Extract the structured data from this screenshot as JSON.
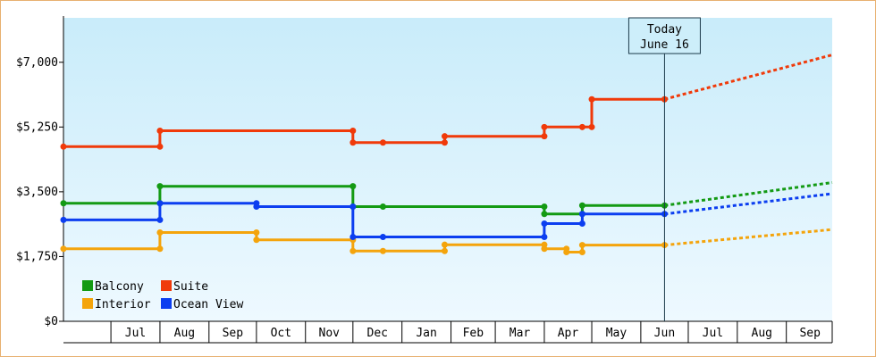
{
  "chart_data": {
    "type": "line",
    "line_style": "step",
    "yaxis": {
      "ticks": [
        "$0",
        "$1,750",
        "$3,500",
        "$5,250",
        "$7,000"
      ],
      "tick_values": [
        0,
        1750,
        3500,
        5250,
        7000
      ],
      "ylim": [
        0,
        8200
      ]
    },
    "xaxis": {
      "months": [
        "Jul",
        "Aug",
        "Sep",
        "Oct",
        "Nov",
        "Dec",
        "Jan",
        "Feb",
        "Mar",
        "Apr",
        "May",
        "Jun",
        "Jul",
        "Aug",
        "Sep"
      ],
      "range_start": "2024-06-01",
      "range_end": "2025-09-30"
    },
    "today": {
      "line1": "Today",
      "line2": "June 16",
      "date": "2025-06-16"
    },
    "legend": {
      "position": "bottom-left"
    },
    "series": [
      {
        "name": "Balcony",
        "color": "#139a13",
        "points": [
          [
            "2024-06-01",
            3190
          ],
          [
            "2024-08-01",
            3190
          ],
          [
            "2024-08-01",
            3650
          ],
          [
            "2024-12-01",
            3650
          ],
          [
            "2024-12-01",
            3100
          ],
          [
            "2024-12-20",
            3100
          ],
          [
            "2025-04-01",
            3100
          ],
          [
            "2025-04-01",
            2900
          ],
          [
            "2025-04-25",
            2900
          ],
          [
            "2025-04-25",
            3130
          ],
          [
            "2025-06-16",
            3130
          ]
        ],
        "forecast": [
          [
            "2025-06-16",
            3130
          ],
          [
            "2025-09-30",
            3750
          ]
        ]
      },
      {
        "name": "Suite",
        "color": "#f03a0a",
        "points": [
          [
            "2024-06-01",
            4720
          ],
          [
            "2024-08-01",
            4720
          ],
          [
            "2024-08-01",
            5150
          ],
          [
            "2024-12-01",
            5150
          ],
          [
            "2024-12-01",
            4830
          ],
          [
            "2024-12-20",
            4830
          ],
          [
            "2025-01-28",
            4830
          ],
          [
            "2025-01-28",
            5000
          ],
          [
            "2025-04-01",
            5000
          ],
          [
            "2025-04-01",
            5250
          ],
          [
            "2025-04-25",
            5250
          ],
          [
            "2025-05-01",
            5250
          ],
          [
            "2025-05-01",
            6000
          ],
          [
            "2025-06-16",
            6000
          ]
        ],
        "forecast": [
          [
            "2025-06-16",
            6000
          ],
          [
            "2025-09-30",
            7200
          ]
        ]
      },
      {
        "name": "Interior",
        "color": "#f4a40c",
        "points": [
          [
            "2024-06-01",
            1960
          ],
          [
            "2024-08-01",
            1960
          ],
          [
            "2024-08-01",
            2400
          ],
          [
            "2024-10-01",
            2400
          ],
          [
            "2024-10-01",
            2200
          ],
          [
            "2024-12-01",
            2200
          ],
          [
            "2024-12-01",
            1900
          ],
          [
            "2024-12-20",
            1900
          ],
          [
            "2025-01-28",
            1900
          ],
          [
            "2025-01-28",
            2070
          ],
          [
            "2025-04-01",
            2070
          ],
          [
            "2025-04-01",
            1960
          ],
          [
            "2025-04-15",
            1960
          ],
          [
            "2025-04-15",
            1870
          ],
          [
            "2025-04-25",
            1870
          ],
          [
            "2025-04-25",
            2060
          ],
          [
            "2025-06-16",
            2060
          ]
        ],
        "forecast": [
          [
            "2025-06-16",
            2060
          ],
          [
            "2025-09-30",
            2480
          ]
        ]
      },
      {
        "name": "Ocean View",
        "color": "#0c3ef0",
        "points": [
          [
            "2024-06-01",
            2740
          ],
          [
            "2024-08-01",
            2740
          ],
          [
            "2024-08-01",
            3190
          ],
          [
            "2024-10-01",
            3190
          ],
          [
            "2024-10-01",
            3100
          ],
          [
            "2024-12-01",
            3100
          ],
          [
            "2024-12-01",
            2280
          ],
          [
            "2024-12-20",
            2280
          ],
          [
            "2025-04-01",
            2280
          ],
          [
            "2025-04-01",
            2640
          ],
          [
            "2025-04-25",
            2640
          ],
          [
            "2025-04-25",
            2900
          ],
          [
            "2025-06-16",
            2900
          ]
        ],
        "forecast": [
          [
            "2025-06-16",
            2900
          ],
          [
            "2025-09-30",
            3450
          ]
        ]
      }
    ]
  }
}
